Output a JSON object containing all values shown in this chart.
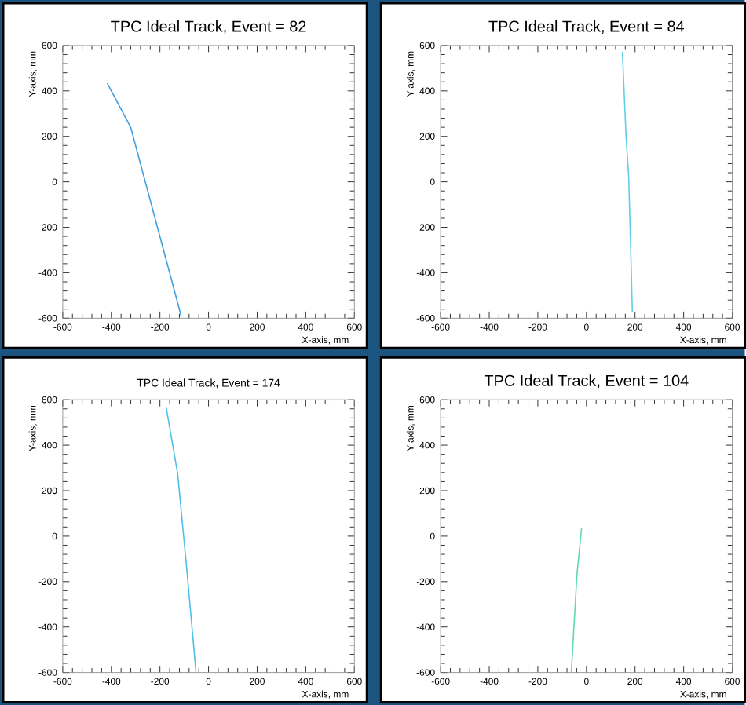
{
  "chart_data": [
    {
      "type": "line",
      "title": "TPC Ideal Track, Event = 82",
      "xlabel": "X-axis, mm",
      "ylabel": "Y-axis, mm",
      "x": [
        -417,
        -320,
        -112
      ],
      "values": [
        434,
        239,
        -593
      ],
      "color": "#3f9fe0",
      "xlim": [
        -600,
        600
      ],
      "ylim": [
        -600,
        600
      ],
      "xticks": [
        -600,
        -400,
        -200,
        0,
        200,
        400,
        600
      ],
      "yticks": [
        -600,
        -400,
        -200,
        0,
        200,
        400,
        600
      ]
    },
    {
      "type": "line",
      "title": "TPC Ideal Track, Event = 84",
      "xlabel": "X-axis, mm",
      "ylabel": "Y-axis, mm",
      "x": [
        148,
        163,
        174,
        189
      ],
      "values": [
        572,
        200,
        22,
        -572
      ],
      "color": "#5fd0e8",
      "xlim": [
        -600,
        600
      ],
      "ylim": [
        -600,
        600
      ],
      "xticks": [
        -600,
        -400,
        -200,
        0,
        200,
        400,
        600
      ],
      "yticks": [
        -600,
        -400,
        -200,
        0,
        200,
        400,
        600
      ]
    },
    {
      "type": "line",
      "title": "TPC Ideal Track, Event = 174",
      "xlabel": "X-axis, mm",
      "ylabel": "Y-axis, mm",
      "x": [
        -174,
        -127,
        -88,
        -52
      ],
      "values": [
        565,
        274,
        -163,
        -595
      ],
      "color": "#4fc0e8",
      "xlim": [
        -600,
        600
      ],
      "ylim": [
        -600,
        600
      ],
      "xticks": [
        -600,
        -400,
        -200,
        0,
        200,
        400,
        600
      ],
      "yticks": [
        -600,
        -400,
        -200,
        0,
        200,
        400,
        600
      ]
    },
    {
      "type": "line",
      "title": "TPC Ideal Track, Event = 104",
      "xlabel": "X-axis, mm",
      "ylabel": "Y-axis, mm",
      "x": [
        -20,
        -39,
        -62
      ],
      "values": [
        35,
        -169,
        -598
      ],
      "color": "#60d8b0",
      "xlim": [
        -600,
        600
      ],
      "ylim": [
        -600,
        600
      ],
      "xticks": [
        -600,
        -400,
        -200,
        0,
        200,
        400,
        600
      ],
      "yticks": [
        -600,
        -400,
        -200,
        0,
        200,
        400,
        600
      ]
    }
  ]
}
